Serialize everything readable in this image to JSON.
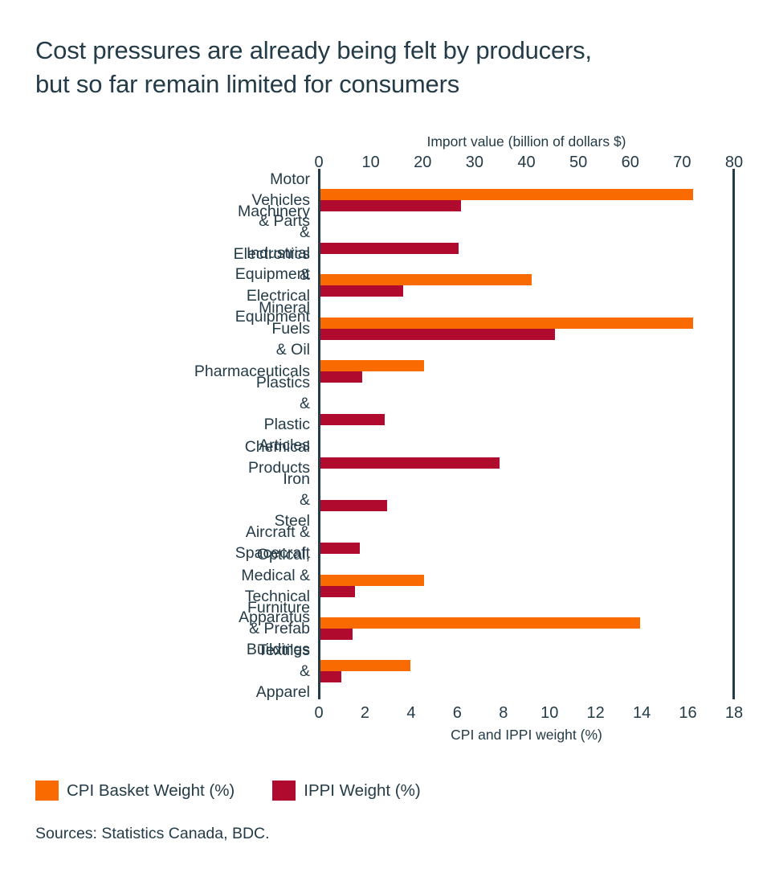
{
  "title": {
    "line1": "Cost pressures are already being felt by producers,",
    "line2": "but so far remain limited for consumers"
  },
  "colors": {
    "cpi_orange": "#F96A00",
    "ippi_red": "#B00B2E",
    "text": "#243B48",
    "axis_line": "#243B48",
    "background": "#FFFFFF"
  },
  "chart_data": {
    "type": "bar",
    "orientation": "horizontal",
    "top_axis": {
      "label": "Import value (billion of dollars $)",
      "ticks": [
        0,
        10,
        20,
        30,
        40,
        50,
        60,
        70,
        80
      ],
      "range": [
        0,
        80
      ]
    },
    "bottom_axis": {
      "label": "CPI and IPPI weight (%)",
      "ticks": [
        0,
        2,
        4,
        6,
        8,
        10,
        12,
        14,
        16,
        18
      ],
      "range": [
        0,
        18
      ]
    },
    "categories": [
      "Motor Vehicles & Parts",
      "Machinery & Industrial Equipment",
      "Electronics & Electrical Equipment",
      "Mineral Fuels & Oil",
      "Pharmaceuticals",
      "Plastics & Plastic Articles",
      "Chemical Products",
      "Iron & Steel",
      "Aircraft & Spacecraft",
      "Optical, Medical &\nTechnical Apparatus",
      "Furniture & Prefab Buildings",
      "Textiles & Apparel"
    ],
    "series": [
      {
        "name": "CPI Basket Weight (%)",
        "color": "#F96A00",
        "values": [
          16.2,
          null,
          9.2,
          16.2,
          4.5,
          null,
          null,
          null,
          null,
          4.5,
          13.9,
          3.9
        ]
      },
      {
        "name": "IPPI Weight (%)",
        "color": "#B00B2E",
        "values": [
          6.1,
          6.0,
          3.6,
          10.2,
          1.8,
          2.8,
          7.8,
          2.9,
          1.7,
          1.5,
          1.4,
          0.9
        ]
      }
    ],
    "grid": false,
    "legend_position": "bottom-left"
  },
  "legend": {
    "items": [
      {
        "label": "CPI Basket Weight (%)",
        "color": "#F96A00"
      },
      {
        "label": "IPPI Weight (%)",
        "color": "#B00B2E"
      }
    ]
  },
  "footer": {
    "sources": "Sources: Statistics Canada, BDC."
  }
}
